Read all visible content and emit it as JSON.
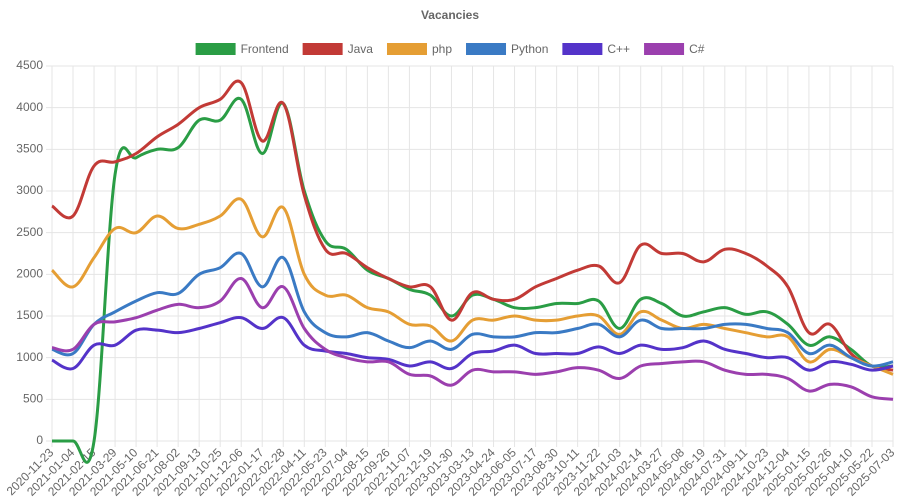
{
  "chart_data": {
    "type": "line",
    "title": "Vacancies",
    "categories": [
      "2020-11-23",
      "2021-01-04",
      "2021-02-15",
      "2021-03-29",
      "2021-05-10",
      "2021-06-21",
      "2021-08-02",
      "2021-09-13",
      "2021-10-25",
      "2021-12-06",
      "2022-01-17",
      "2022-02-28",
      "2022-04-11",
      "2022-05-23",
      "2022-07-04",
      "2022-08-15",
      "2022-09-26",
      "2022-11-07",
      "2022-12-19",
      "2023-01-30",
      "2023-03-13",
      "2023-04-24",
      "2023-06-05",
      "2023-07-17",
      "2023-08-30",
      "2023-10-11",
      "2023-11-22",
      "2024-01-03",
      "2024-02-14",
      "2024-03-27",
      "2024-05-08",
      "2024-06-19",
      "2024-07-31",
      "2024-09-11",
      "2024-10-23",
      "2024-12-04",
      "2025-01-15",
      "2025-02-26",
      "2025-04-10",
      "2025-05-22",
      "2025-07-03"
    ],
    "series": [
      {
        "name": "Frontend",
        "color": "#2a9d45",
        "values": [
          0,
          0,
          0,
          3200,
          3400,
          3500,
          3520,
          3850,
          3850,
          4100,
          3450,
          4050,
          3000,
          2400,
          2300,
          2050,
          1950,
          1820,
          1750,
          1500,
          1750,
          1700,
          1600,
          1600,
          1650,
          1650,
          1680,
          1350,
          1700,
          1650,
          1500,
          1550,
          1600,
          1520,
          1550,
          1400,
          1150,
          1250,
          1100,
          900,
          900
        ]
      },
      {
        "name": "Java",
        "color": "#c23a36",
        "values": [
          2820,
          2700,
          3300,
          3350,
          3450,
          3650,
          3800,
          4000,
          4100,
          4300,
          3600,
          4050,
          2950,
          2300,
          2250,
          2080,
          1950,
          1850,
          1850,
          1450,
          1780,
          1700,
          1700,
          1850,
          1950,
          2050,
          2100,
          1900,
          2350,
          2250,
          2250,
          2150,
          2300,
          2250,
          2100,
          1850,
          1300,
          1400,
          1050,
          900,
          850
        ]
      },
      {
        "name": "php",
        "color": "#e59e34",
        "values": [
          2050,
          1850,
          2200,
          2550,
          2500,
          2700,
          2550,
          2600,
          2700,
          2900,
          2450,
          2800,
          2000,
          1750,
          1750,
          1600,
          1550,
          1400,
          1380,
          1200,
          1450,
          1450,
          1500,
          1450,
          1450,
          1500,
          1500,
          1280,
          1550,
          1450,
          1350,
          1400,
          1350,
          1300,
          1250,
          1250,
          950,
          1100,
          1000,
          900,
          800
        ]
      },
      {
        "name": "Python",
        "color": "#3a7ac4",
        "values": [
          1100,
          1050,
          1400,
          1550,
          1680,
          1780,
          1770,
          2000,
          2080,
          2250,
          1850,
          2200,
          1550,
          1300,
          1250,
          1300,
          1200,
          1120,
          1200,
          1100,
          1280,
          1250,
          1250,
          1300,
          1300,
          1350,
          1400,
          1250,
          1450,
          1350,
          1350,
          1350,
          1400,
          1400,
          1350,
          1300,
          1050,
          1150,
          1000,
          900,
          950
        ]
      },
      {
        "name": "C++",
        "color": "#5433c9",
        "values": [
          970,
          870,
          1150,
          1150,
          1330,
          1330,
          1300,
          1350,
          1420,
          1480,
          1350,
          1480,
          1150,
          1080,
          1050,
          1000,
          980,
          900,
          950,
          870,
          1050,
          1080,
          1150,
          1050,
          1050,
          1050,
          1130,
          1050,
          1150,
          1100,
          1120,
          1200,
          1100,
          1050,
          1000,
          1000,
          850,
          950,
          920,
          850,
          900
        ]
      },
      {
        "name": "C#",
        "color": "#9b3fae",
        "values": [
          1120,
          1100,
          1400,
          1430,
          1480,
          1570,
          1640,
          1600,
          1680,
          1950,
          1600,
          1850,
          1350,
          1100,
          1000,
          950,
          950,
          800,
          780,
          670,
          850,
          830,
          830,
          800,
          830,
          880,
          850,
          750,
          900,
          930,
          950,
          950,
          850,
          800,
          800,
          750,
          600,
          680,
          650,
          530,
          500
        ]
      }
    ],
    "ylim": [
      0,
      4500
    ],
    "yticks": [
      0,
      500,
      1000,
      1500,
      2000,
      2500,
      3000,
      3500,
      4000,
      4500
    ],
    "grid": true
  }
}
